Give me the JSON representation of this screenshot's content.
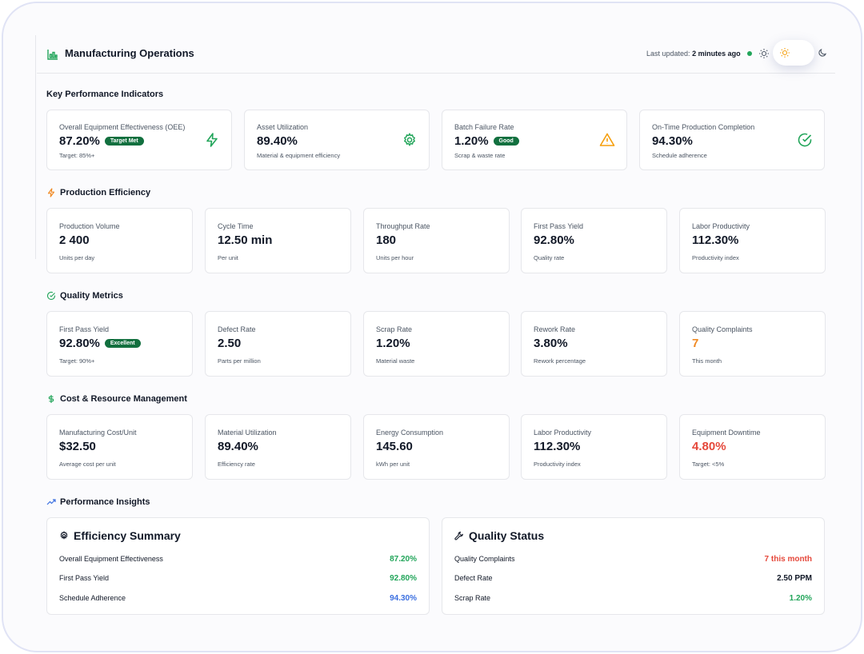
{
  "header": {
    "title": "Manufacturing Operations",
    "updated_label": "Last updated:",
    "updated_value": "2 minutes ago"
  },
  "colors": {
    "green": "#22a55a",
    "dark_green_badge": "#12703f",
    "orange": "#f08a24",
    "amber": "#f59e0b",
    "red": "#e5483b",
    "blue": "#3b6fe0"
  },
  "kpi": {
    "title": "Key Performance Indicators",
    "cards": [
      {
        "label": "Overall Equipment Effectiveness (OEE)",
        "value": "87.20%",
        "badge": "Target Met",
        "sub": "Target: 85%+",
        "icon": "lightning-icon"
      },
      {
        "label": "Asset Utilization",
        "value": "89.40%",
        "sub": "Material & equipment efficiency",
        "icon": "gear-icon"
      },
      {
        "label": "Batch Failure Rate",
        "value": "1.20%",
        "badge": "Good",
        "sub": "Scrap & waste rate",
        "icon": "warning-icon"
      },
      {
        "label": "On-Time Production Completion",
        "value": "94.30%",
        "sub": "Schedule adherence",
        "icon": "check-circle-icon"
      }
    ]
  },
  "production": {
    "title": "Production Efficiency",
    "cards": [
      {
        "label": "Production Volume",
        "value": "2 400",
        "sub": "Units per day"
      },
      {
        "label": "Cycle Time",
        "value": "12.50 min",
        "sub": "Per unit"
      },
      {
        "label": "Throughput Rate",
        "value": "180",
        "sub": "Units per hour"
      },
      {
        "label": "First Pass Yield",
        "value": "92.80%",
        "sub": "Quality rate"
      },
      {
        "label": "Labor Productivity",
        "value": "112.30%",
        "sub": "Productivity index"
      }
    ]
  },
  "quality": {
    "title": "Quality Metrics",
    "cards": [
      {
        "label": "First Pass Yield",
        "value": "92.80%",
        "badge": "Excellent",
        "sub": "Target: 90%+"
      },
      {
        "label": "Defect Rate",
        "value": "2.50",
        "sub": "Parts per million"
      },
      {
        "label": "Scrap Rate",
        "value": "1.20%",
        "sub": "Material waste"
      },
      {
        "label": "Rework Rate",
        "value": "3.80%",
        "sub": "Rework percentage"
      },
      {
        "label": "Quality Complaints",
        "value": "7",
        "sub": "This month"
      }
    ]
  },
  "cost": {
    "title": "Cost & Resource Management",
    "cards": [
      {
        "label": "Manufacturing Cost/Unit",
        "value": "$32.50",
        "sub": "Average cost per unit"
      },
      {
        "label": "Material Utilization",
        "value": "89.40%",
        "sub": "Efficiency rate"
      },
      {
        "label": "Energy Consumption",
        "value": "145.60",
        "sub": "kWh per unit"
      },
      {
        "label": "Labor Productivity",
        "value": "112.30%",
        "sub": "Productivity index"
      },
      {
        "label": "Equipment Downtime",
        "value": "4.80%",
        "sub": "Target: <5%"
      }
    ]
  },
  "insights": {
    "title": "Performance Insights",
    "efficiency": {
      "title": "Efficiency Summary",
      "rows": [
        {
          "label": "Overall Equipment Effectiveness",
          "value": "87.20%"
        },
        {
          "label": "First Pass Yield",
          "value": "92.80%"
        },
        {
          "label": "Schedule Adherence",
          "value": "94.30%"
        }
      ]
    },
    "quality": {
      "title": "Quality Status",
      "rows": [
        {
          "label": "Quality Complaints",
          "value": "7 this month"
        },
        {
          "label": "Defect Rate",
          "value": "2.50 PPM"
        },
        {
          "label": "Scrap Rate",
          "value": "1.20%"
        }
      ]
    }
  }
}
